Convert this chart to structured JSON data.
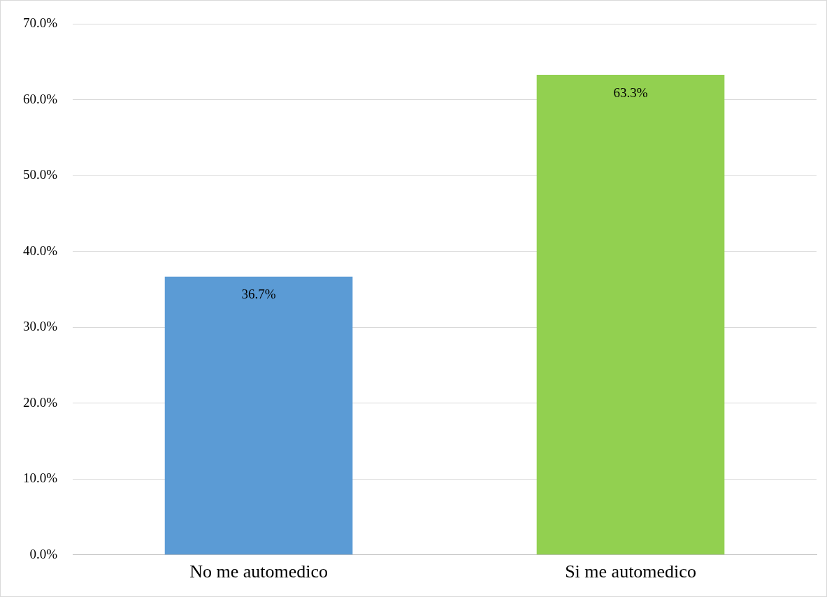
{
  "chart_data": {
    "type": "bar",
    "categories": [
      "No me automedico",
      "Si me automedico"
    ],
    "values": [
      36.7,
      63.3
    ],
    "colors": [
      "#5b9bd5",
      "#92d050"
    ],
    "value_labels": [
      "36.7%",
      "63.3%"
    ],
    "ylim": [
      0,
      70
    ],
    "yticks": [
      {
        "value": 0,
        "label": "0.0%"
      },
      {
        "value": 10,
        "label": "10.0%"
      },
      {
        "value": 20,
        "label": "20.0%"
      },
      {
        "value": 30,
        "label": "30.0%"
      },
      {
        "value": 40,
        "label": "40.0%"
      },
      {
        "value": 50,
        "label": "50.0%"
      },
      {
        "value": 60,
        "label": "60.0%"
      },
      {
        "value": 70,
        "label": "70.0%"
      }
    ],
    "grid": "y",
    "legend": false
  }
}
